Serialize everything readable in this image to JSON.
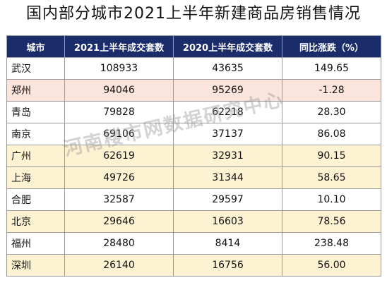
{
  "title": "国内部分城市2021上半年新建商品房销售情况",
  "headers": [
    "城市",
    "2021上半年成交套数",
    "2020上半年成交套数",
    "同比涨跌（%）"
  ],
  "rows": [
    {
      "city": "武汉",
      "y2021": "108933",
      "y2020": "43635",
      "change": "149.65",
      "highlight": "white"
    },
    {
      "city": "郑州",
      "y2021": "94046",
      "y2020": "95269",
      "change": "-1.28",
      "highlight": "pink"
    },
    {
      "city": "青岛",
      "y2021": "79828",
      "y2020": "62218",
      "change": "28.30",
      "highlight": "white"
    },
    {
      "city": "南京",
      "y2021": "69106",
      "y2020": "37137",
      "change": "86.08",
      "highlight": "white"
    },
    {
      "city": "广州",
      "y2021": "62619",
      "y2020": "32931",
      "change": "90.15",
      "highlight": "yellow"
    },
    {
      "city": "上海",
      "y2021": "49726",
      "y2020": "31344",
      "change": "58.65",
      "highlight": "yellow"
    },
    {
      "city": "合肥",
      "y2021": "32587",
      "y2020": "29597",
      "change": "10.10",
      "highlight": "white"
    },
    {
      "city": "北京",
      "y2021": "29646",
      "y2020": "16603",
      "change": "78.56",
      "highlight": "yellow"
    },
    {
      "city": "福州",
      "y2021": "28480",
      "y2020": "8414",
      "change": "238.48",
      "highlight": "white"
    },
    {
      "city": "深圳",
      "y2021": "26140",
      "y2020": "16756",
      "change": "56.00",
      "highlight": "yellow"
    }
  ],
  "watermark": "河南楼市网数据研究中心",
  "colors": {
    "header_bg": "#1b2c6b",
    "header_text": "#ffffff",
    "row_pink": "#fbe4dc",
    "row_yellow": "#fdf2d2",
    "row_white": "#ffffff"
  }
}
